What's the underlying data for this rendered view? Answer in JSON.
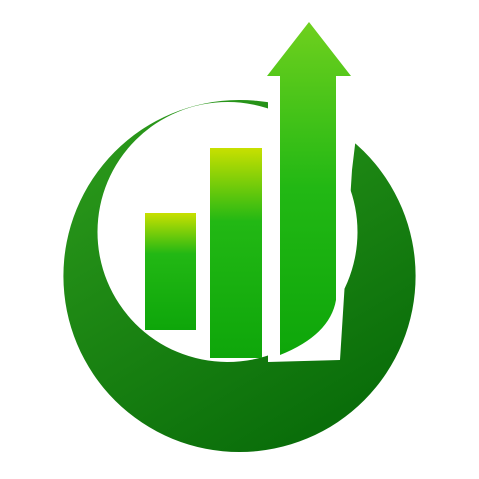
{
  "logo": {
    "icon": "growth-chart-logo",
    "elements": [
      "crescent-ring",
      "bar-short",
      "bar-medium",
      "arrow-up-bar"
    ],
    "colors": {
      "background": "#ffffff",
      "ring_light": "#2f9e1d",
      "ring_dark": "#0a6e0a",
      "bar_top": "#c8e000",
      "bar_mid": "#22b814",
      "bar_bottom": "#0ea60a"
    }
  }
}
